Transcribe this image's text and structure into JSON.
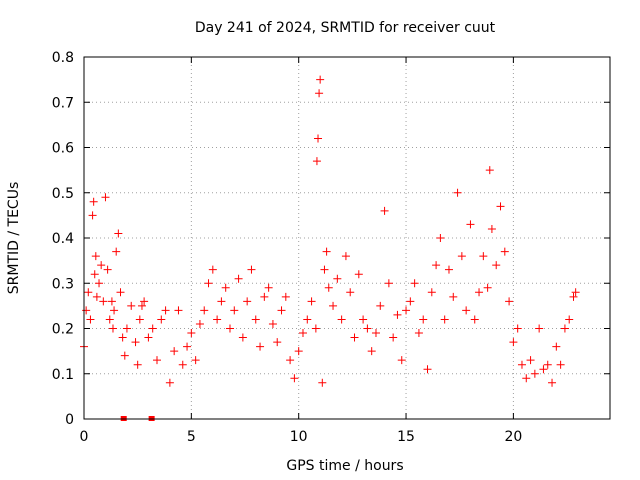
{
  "chart_data": {
    "type": "scatter",
    "title": "Day 241 of 2024, SRMTID for receiver cuut",
    "xlabel": "GPS time / hours",
    "ylabel": "SRMTID / TECUs",
    "xlim": [
      0,
      24.5
    ],
    "ylim": [
      0,
      0.8
    ],
    "x_ticks": [
      0,
      5,
      10,
      15,
      20
    ],
    "x_tick_labels": [
      "0",
      "5",
      "10",
      "15",
      "20"
    ],
    "y_ticks": [
      0,
      0.1,
      0.2,
      0.3,
      0.4,
      0.5,
      0.6,
      0.7,
      0.8
    ],
    "y_tick_labels": [
      "0",
      "0.1",
      "0.2",
      "0.3",
      "0.4",
      "0.5",
      "0.6",
      "0.7",
      "0.8"
    ],
    "grid": true,
    "marker": "plus",
    "series_color": "#ff0000",
    "grid_color": "#a0a0a0",
    "series": [
      {
        "name": "SRMTID",
        "x": [
          0.0,
          0.1,
          0.2,
          0.3,
          0.4,
          0.45,
          0.5,
          0.55,
          0.6,
          0.7,
          0.8,
          0.9,
          1.0,
          1.1,
          1.2,
          1.3,
          1.35,
          1.4,
          1.5,
          1.6,
          1.7,
          1.8,
          1.9,
          2.0,
          2.2,
          2.4,
          2.5,
          2.6,
          2.7,
          2.8,
          3.0,
          3.2,
          3.4,
          3.6,
          3.8,
          4.0,
          4.2,
          4.4,
          4.6,
          4.8,
          5.0,
          5.2,
          5.4,
          5.6,
          5.8,
          6.0,
          6.2,
          6.4,
          6.6,
          6.8,
          7.0,
          7.2,
          7.4,
          7.6,
          7.8,
          8.0,
          8.2,
          8.4,
          8.6,
          8.8,
          9.0,
          9.2,
          9.4,
          9.6,
          9.8,
          10.0,
          10.2,
          10.4,
          10.6,
          10.8,
          10.85,
          10.9,
          10.95,
          11.0,
          11.1,
          11.2,
          11.3,
          11.4,
          11.6,
          11.8,
          12.0,
          12.2,
          12.4,
          12.6,
          12.8,
          13.0,
          13.2,
          13.4,
          13.6,
          13.8,
          14.0,
          14.2,
          14.4,
          14.6,
          14.8,
          15.0,
          15.2,
          15.4,
          15.6,
          15.8,
          16.0,
          16.2,
          16.4,
          16.6,
          16.8,
          17.0,
          17.2,
          17.4,
          17.6,
          17.8,
          18.0,
          18.2,
          18.4,
          18.6,
          18.8,
          18.9,
          19.0,
          19.2,
          19.4,
          19.6,
          19.8,
          20.0,
          20.2,
          20.4,
          20.6,
          20.8,
          21.0,
          21.2,
          21.4,
          21.6,
          21.8,
          22.0,
          22.2,
          22.4,
          22.6,
          22.8,
          22.9
        ],
        "y": [
          0.16,
          0.24,
          0.28,
          0.22,
          0.45,
          0.48,
          0.32,
          0.36,
          0.27,
          0.3,
          0.34,
          0.26,
          0.49,
          0.33,
          0.22,
          0.26,
          0.2,
          0.24,
          0.37,
          0.41,
          0.28,
          0.18,
          0.14,
          0.2,
          0.25,
          0.17,
          0.12,
          0.22,
          0.25,
          0.26,
          0.18,
          0.2,
          0.13,
          0.22,
          0.24,
          0.08,
          0.15,
          0.24,
          0.12,
          0.16,
          0.19,
          0.13,
          0.21,
          0.24,
          0.3,
          0.33,
          0.22,
          0.26,
          0.29,
          0.2,
          0.24,
          0.31,
          0.18,
          0.26,
          0.33,
          0.22,
          0.16,
          0.27,
          0.29,
          0.21,
          0.17,
          0.24,
          0.27,
          0.13,
          0.09,
          0.15,
          0.19,
          0.22,
          0.26,
          0.2,
          0.57,
          0.62,
          0.72,
          0.75,
          0.08,
          0.33,
          0.37,
          0.29,
          0.25,
          0.31,
          0.22,
          0.36,
          0.28,
          0.18,
          0.32,
          0.22,
          0.2,
          0.15,
          0.19,
          0.25,
          0.46,
          0.3,
          0.18,
          0.23,
          0.13,
          0.24,
          0.26,
          0.3,
          0.19,
          0.22,
          0.11,
          0.28,
          0.34,
          0.4,
          0.22,
          0.33,
          0.27,
          0.5,
          0.36,
          0.24,
          0.43,
          0.22,
          0.28,
          0.36,
          0.29,
          0.55,
          0.42,
          0.34,
          0.47,
          0.37,
          0.26,
          0.17,
          0.2,
          0.12,
          0.09,
          0.13,
          0.1,
          0.2,
          0.11,
          0.12,
          0.08,
          0.16,
          0.12,
          0.2,
          0.22,
          0.27,
          0.28
        ],
        "x_zero": [
          1.85,
          3.15
        ],
        "y_zero": [
          0,
          0
        ]
      }
    ]
  }
}
